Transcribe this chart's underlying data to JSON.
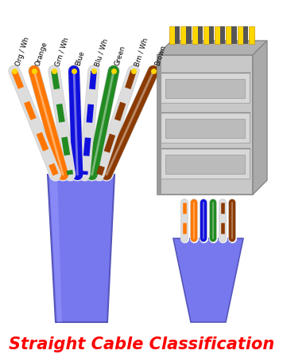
{
  "title": "Straight Cable Classification",
  "title_color": "#FF0000",
  "title_fontsize": 15,
  "bg_color": "#FFFFFF",
  "wire_labels": [
    "Org / Wh",
    "Orange",
    "Grn / Wh",
    "Blue",
    "Blu / Wh",
    "Green",
    "Brn / Wh",
    "Brown"
  ],
  "wire_main_colors": [
    "#FF7700",
    "#FF7700",
    "#228B22",
    "#1010DD",
    "#1010DD",
    "#228B22",
    "#8B3A00",
    "#8B3A00"
  ],
  "wire_base_colors": [
    "#D0D0D0",
    "#FF7700",
    "#D0D0D0",
    "#1010DD",
    "#D0D0D0",
    "#228B22",
    "#D0D0D0",
    "#8B3A00"
  ],
  "wire_has_stripe": [
    true,
    false,
    true,
    false,
    true,
    false,
    true,
    false
  ],
  "wire_stripe_colors": [
    "#FF7700",
    null,
    "#228B22",
    null,
    "#1010DD",
    null,
    "#8B3A00",
    null
  ],
  "cable_jacket_color": "#7878EE",
  "cable_jacket_dark": "#5555BB",
  "connector_face_color": "#C8C8C8",
  "connector_top_color": "#B0B0B0",
  "connector_side_color": "#AAAAAA",
  "connector_dark_color": "#888888",
  "connector_gold_color": "#FFD700",
  "connector_gold_dark": "#CC9900",
  "small_wire_colors": [
    "#FF7700",
    "#FF7700",
    "#1010DD",
    "#228B22",
    "#8B3A00",
    "#8B3A00"
  ],
  "small_wire_has_stripe": [
    true,
    false,
    false,
    false,
    true,
    false
  ]
}
